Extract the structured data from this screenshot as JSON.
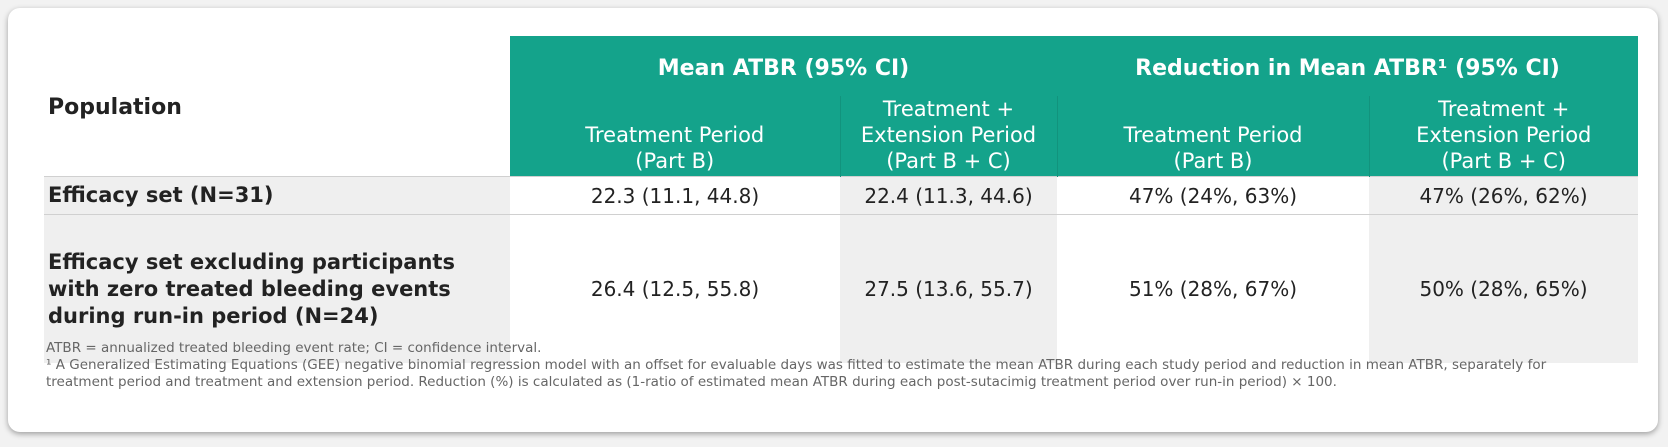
{
  "header": {
    "population_label": "Population",
    "groups": [
      {
        "label": "Mean ATBR  (95% CI)"
      },
      {
        "label": "Reduction in Mean ATBR¹ (95% CI)"
      }
    ],
    "subheaders": [
      {
        "line1": "Treatment Period",
        "line2": "(Part B)"
      },
      {
        "line1": "Treatment +",
        "line2": "Extension Period",
        "line3": "(Part B + C)"
      },
      {
        "line1": "Treatment Period",
        "line2": "(Part B)"
      },
      {
        "line1": "Treatment +",
        "line2": "Extension Period",
        "line3": "(Part B + C)"
      }
    ]
  },
  "rows": [
    {
      "population": "Efficacy set (N=31)",
      "values": [
        "22.3 (11.1, 44.8)",
        "22.4 (11.3, 44.6)",
        "47% (24%, 63%)",
        "47% (26%, 62%)"
      ]
    },
    {
      "population": "Efficacy set excluding participants with zero treated bleeding events during run-in period (N=24)",
      "values": [
        "26.4 (12.5, 55.8)",
        "27.5 (13.6, 55.7)",
        "51% (28%, 67%)",
        "50% (28%, 65%)"
      ]
    }
  ],
  "footnotes": {
    "abbrev": "ATBR = annualized treated bleeding event rate; CI = confidence interval.",
    "note1": "¹ A Generalized Estimating Equations (GEE) negative binomial regression model with an offset for evaluable days was fitted to estimate the mean ATBR during each study period and reduction in mean ATBR, separately for treatment period and treatment and extension period. Reduction (%) is calculated as (1-ratio of estimated mean ATBR during each post-sutacimig treatment period over run-in period) × 100."
  },
  "colors": {
    "header_bg": "#14a38b",
    "header_text": "#ffffff",
    "row_shade": "#efefef"
  }
}
